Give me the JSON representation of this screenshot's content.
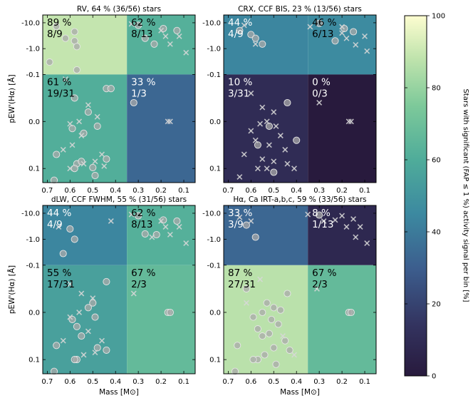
{
  "chart_data": [
    {
      "type": "heatmap",
      "title": "RV, 64 % (36/56) stars",
      "xlabel": "",
      "ylabel": "pEW'(Hα) [Å]",
      "quadrants": [
        {
          "pos": "top-left",
          "pct": "89 %",
          "frac": "8/9",
          "value": 89
        },
        {
          "pos": "top-right",
          "pct": "62 %",
          "frac": "8/13",
          "value": 62
        },
        {
          "pos": "bottom-left",
          "pct": "61 %",
          "frac": "19/31",
          "value": 61
        },
        {
          "pos": "bottom-right",
          "pct": "33 %",
          "frac": "1/3",
          "value": 33
        }
      ],
      "circles": [
        [
          0.66,
          -7.2
        ],
        [
          0.62,
          -2.5
        ],
        [
          0.58,
          -4.5
        ],
        [
          0.58,
          -2.0
        ],
        [
          0.57,
          -1.2
        ],
        [
          0.69,
          -0.3
        ],
        [
          0.57,
          -0.15
        ],
        [
          0.44,
          -0.07
        ],
        [
          0.42,
          -0.07
        ],
        [
          0.58,
          -0.05
        ],
        [
          0.52,
          -0.02
        ],
        [
          0.59,
          0.015
        ],
        [
          0.48,
          0.01
        ],
        [
          0.54,
          0.025
        ],
        [
          0.66,
          0.07
        ],
        [
          0.57,
          0.09
        ],
        [
          0.55,
          0.085
        ],
        [
          0.44,
          0.08
        ],
        [
          0.5,
          0.098
        ],
        [
          0.58,
          0.1
        ],
        [
          0.49,
          0.115
        ],
        [
          0.67,
          0.125
        ],
        [
          0.32,
          -0.04
        ],
        [
          0.3,
          -8
        ],
        [
          0.27,
          -2.5
        ],
        [
          0.23,
          -1.5
        ],
        [
          0.19,
          -6
        ],
        [
          0.13,
          -5
        ]
      ],
      "crosses": [
        [
          0.62,
          -0.09
        ],
        [
          0.52,
          -0.035
        ],
        [
          0.48,
          -0.01
        ],
        [
          0.56,
          0.0
        ],
        [
          0.6,
          0.005
        ],
        [
          0.55,
          0.03
        ],
        [
          0.59,
          0.05
        ],
        [
          0.63,
          0.06
        ],
        [
          0.46,
          0.07
        ],
        [
          0.54,
          0.09
        ],
        [
          0.6,
          0.1
        ],
        [
          0.45,
          0.095
        ],
        [
          0.49,
          0.085
        ],
        [
          0.17,
          0.0
        ],
        [
          0.16,
          0.0
        ],
        [
          0.33,
          -9
        ],
        [
          0.2,
          -5
        ],
        [
          0.18,
          -3
        ],
        [
          0.16,
          -1.5
        ],
        [
          0.12,
          -3
        ],
        [
          0.09,
          -0.7
        ]
      ]
    },
    {
      "type": "heatmap",
      "title": "CRX, CCF BIS, 23 % (13/56) stars",
      "xlabel": "",
      "ylabel": "",
      "quadrants": [
        {
          "pos": "top-left",
          "pct": "44 %",
          "frac": "4/9",
          "value": 44
        },
        {
          "pos": "top-right",
          "pct": "46 %",
          "frac": "6/13",
          "value": 46
        },
        {
          "pos": "bottom-left",
          "pct": "10 %",
          "frac": "3/31",
          "value": 10
        },
        {
          "pos": "bottom-right",
          "pct": "0 %",
          "frac": "0/3",
          "value": 0
        }
      ],
      "circles": [
        [
          0.65,
          -5
        ],
        [
          0.6,
          -3.5
        ],
        [
          0.58,
          -2.5
        ],
        [
          0.55,
          -1.5
        ],
        [
          0.44,
          -0.04
        ],
        [
          0.52,
          0.01
        ],
        [
          0.4,
          0.04
        ],
        [
          0.57,
          0.05
        ],
        [
          0.5,
          0.108
        ],
        [
          0.3,
          -9.5
        ],
        [
          0.23,
          -2
        ],
        [
          0.19,
          -6
        ],
        [
          0.15,
          -4.5
        ]
      ],
      "crosses": [
        [
          0.63,
          -8
        ],
        [
          0.58,
          -1.5
        ],
        [
          0.6,
          -0.06
        ],
        [
          0.55,
          -0.03
        ],
        [
          0.5,
          -0.02
        ],
        [
          0.53,
          0.0
        ],
        [
          0.56,
          0.005
        ],
        [
          0.49,
          0.01
        ],
        [
          0.6,
          0.02
        ],
        [
          0.47,
          0.03
        ],
        [
          0.58,
          0.04
        ],
        [
          0.52,
          0.05
        ],
        [
          0.45,
          0.06
        ],
        [
          0.63,
          0.07
        ],
        [
          0.55,
          0.08
        ],
        [
          0.5,
          0.085
        ],
        [
          0.44,
          0.09
        ],
        [
          0.53,
          0.1
        ],
        [
          0.57,
          0.1
        ],
        [
          0.41,
          0.1
        ],
        [
          0.65,
          0.118
        ],
        [
          0.3,
          -0.04
        ],
        [
          0.17,
          0.0
        ],
        [
          0.16,
          0.0
        ],
        [
          0.34,
          -7
        ],
        [
          0.2,
          -4
        ],
        [
          0.18,
          -2.5
        ],
        [
          0.14,
          -1.4
        ],
        [
          0.1,
          -3
        ],
        [
          0.09,
          -0.8
        ],
        [
          0.2,
          -7
        ]
      ]
    },
    {
      "type": "heatmap",
      "title": "dLW, CCF FWHM, 55 % (31/56) stars",
      "xlabel": "Mass [M⊙]",
      "ylabel": "pEW'(Hα) [Å]",
      "quadrants": [
        {
          "pos": "top-left",
          "pct": "44 %",
          "frac": "4/9",
          "value": 44
        },
        {
          "pos": "top-right",
          "pct": "62 %",
          "frac": "8/13",
          "value": 62
        },
        {
          "pos": "bottom-left",
          "pct": "55 %",
          "frac": "17/31",
          "value": 55
        },
        {
          "pos": "bottom-right",
          "pct": "67 %",
          "frac": "2/3",
          "value": 67
        }
      ],
      "circles": [
        [
          0.6,
          -2.5
        ],
        [
          0.58,
          -1.0
        ],
        [
          0.63,
          -0.28
        ],
        [
          0.44,
          -0.065
        ],
        [
          0.5,
          -0.02
        ],
        [
          0.52,
          -0.01
        ],
        [
          0.59,
          0.015
        ],
        [
          0.49,
          0.01
        ],
        [
          0.57,
          0.03
        ],
        [
          0.55,
          0.05
        ],
        [
          0.66,
          0.07
        ],
        [
          0.48,
          0.075
        ],
        [
          0.44,
          0.08
        ],
        [
          0.57,
          0.1
        ],
        [
          0.58,
          0.1
        ],
        [
          0.67,
          0.125
        ],
        [
          0.3,
          -8
        ],
        [
          0.27,
          -1.6
        ],
        [
          0.22,
          -1.5
        ],
        [
          0.19,
          -5.5
        ],
        [
          0.13,
          -5
        ],
        [
          0.17,
          0.0
        ],
        [
          0.16,
          0.0
        ]
      ],
      "crosses": [
        [
          0.65,
          -3
        ],
        [
          0.42,
          -5
        ],
        [
          0.6,
          -0.06
        ],
        [
          0.55,
          -0.04
        ],
        [
          0.5,
          -0.03
        ],
        [
          0.56,
          0.0
        ],
        [
          0.6,
          0.01
        ],
        [
          0.52,
          0.04
        ],
        [
          0.63,
          0.06
        ],
        [
          0.46,
          0.06
        ],
        [
          0.54,
          0.09
        ],
        [
          0.49,
          0.085
        ],
        [
          0.32,
          -0.04
        ],
        [
          0.33,
          -9
        ],
        [
          0.2,
          -5
        ],
        [
          0.18,
          -3
        ],
        [
          0.16,
          -1.5
        ],
        [
          0.12,
          -3
        ],
        [
          0.09,
          -0.7
        ],
        [
          0.24,
          -1.2
        ]
      ]
    },
    {
      "type": "heatmap",
      "title": "Hα, Ca IRT-a,b,c, 59 % (33/56) stars",
      "xlabel": "Mass [M⊙]",
      "ylabel": "",
      "quadrants": [
        {
          "pos": "top-left",
          "pct": "33 %",
          "frac": "3/9",
          "value": 33
        },
        {
          "pos": "top-right",
          "pct": "8 %",
          "frac": "1/13",
          "value": 8
        },
        {
          "pos": "bottom-left",
          "pct": "87 %",
          "frac": "27/31",
          "value": 87
        },
        {
          "pos": "bottom-right",
          "pct": "67 %",
          "frac": "2/3",
          "value": 67
        }
      ],
      "circles": [
        [
          0.62,
          -3.5
        ],
        [
          0.58,
          -1.2
        ],
        [
          0.62,
          -0.05
        ],
        [
          0.44,
          -0.04
        ],
        [
          0.53,
          -0.02
        ],
        [
          0.5,
          -0.01
        ],
        [
          0.47,
          -0.005
        ],
        [
          0.55,
          0.0
        ],
        [
          0.59,
          0.01
        ],
        [
          0.51,
          0.015
        ],
        [
          0.48,
          0.025
        ],
        [
          0.57,
          0.035
        ],
        [
          0.52,
          0.045
        ],
        [
          0.55,
          0.05
        ],
        [
          0.66,
          0.07
        ],
        [
          0.45,
          0.06
        ],
        [
          0.5,
          0.075
        ],
        [
          0.43,
          0.08
        ],
        [
          0.54,
          0.09
        ],
        [
          0.57,
          0.1
        ],
        [
          0.59,
          0.1
        ],
        [
          0.49,
          0.11
        ],
        [
          0.67,
          0.125
        ],
        [
          0.3,
          -8.5
        ],
        [
          0.17,
          0.0
        ],
        [
          0.16,
          0.0
        ]
      ],
      "crosses": [
        [
          0.65,
          -7
        ],
        [
          0.6,
          -5
        ],
        [
          0.56,
          -0.07
        ],
        [
          0.62,
          -0.02
        ],
        [
          0.46,
          0.05
        ],
        [
          0.41,
          0.09
        ],
        [
          0.31,
          -0.05
        ],
        [
          0.35,
          -9
        ],
        [
          0.28,
          -5
        ],
        [
          0.2,
          -8
        ],
        [
          0.18,
          -3
        ],
        [
          0.14,
          -1.2
        ],
        [
          0.12,
          -3
        ],
        [
          0.09,
          -0.7
        ],
        [
          0.23,
          -5.5
        ],
        [
          0.15,
          -6
        ]
      ]
    }
  ],
  "axes": {
    "x_ticks": [
      "0.7",
      "0.6",
      "0.5",
      "0.4",
      "0.3",
      "0.2",
      "0.1"
    ],
    "y_ticks": [
      "-10.0",
      "-1.0",
      "-0.1",
      "0.0",
      "0.1"
    ]
  },
  "colorbar": {
    "label": "Stars with significant (FAP ≤ 1 %) activity signal per bin [%]",
    "ticks": [
      "0",
      "20",
      "40",
      "60",
      "80",
      "100"
    ],
    "range": [
      0,
      100
    ]
  },
  "colors": {
    "cmap": [
      "#440154",
      "#472c7a",
      "#3b528b",
      "#2c728e",
      "#21918c",
      "#28ae80",
      "#5ec962",
      "#addc30",
      "#fde725"
    ],
    "viridis_note": "sequential",
    "cmap_display": [
      "#281a3d",
      "#33335f",
      "#3c5e8e",
      "#3c89a0",
      "#4fac9a",
      "#7dc99a",
      "#bfe3ac",
      "#fdfdd0"
    ],
    "marker": "#cfcfcf"
  }
}
